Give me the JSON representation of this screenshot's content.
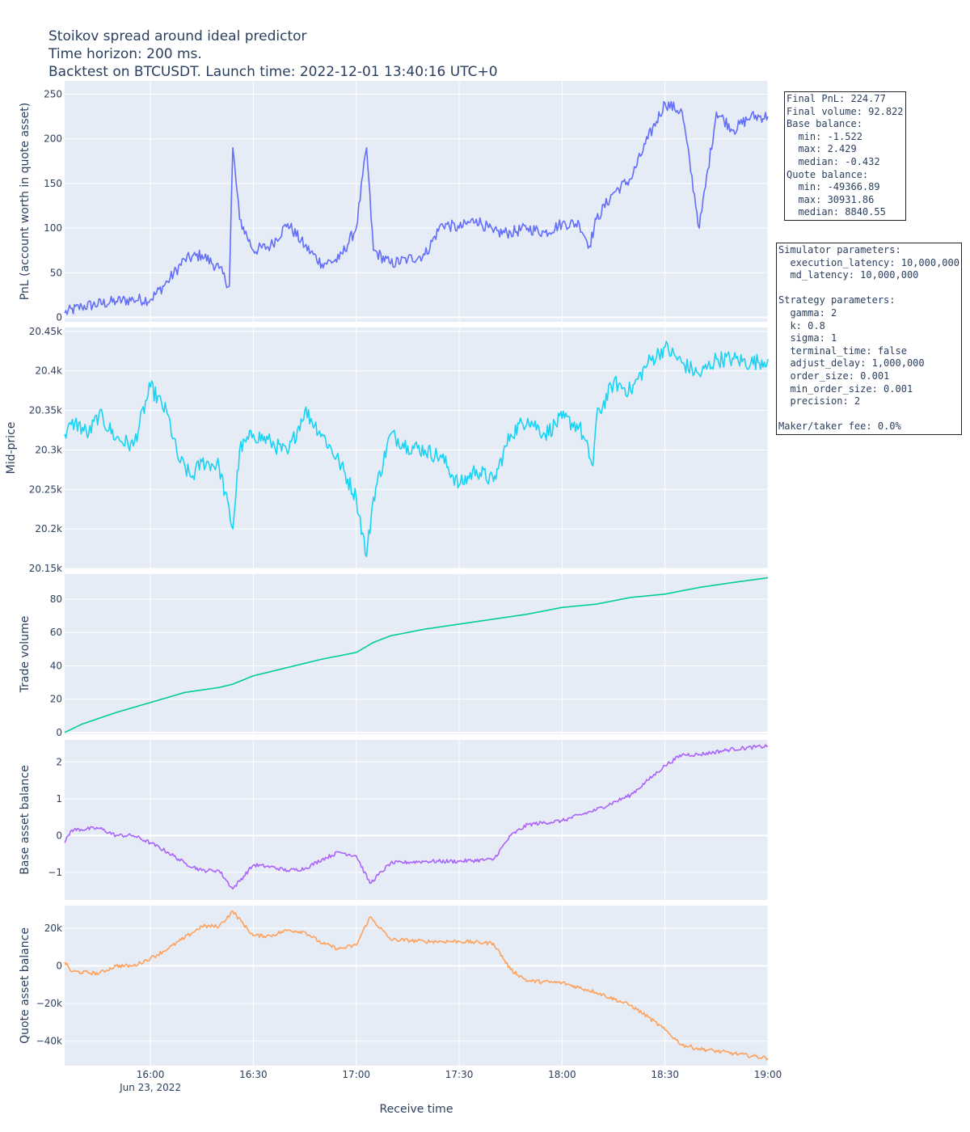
{
  "title": {
    "line1": "Stoikov spread around ideal predictor",
    "line2": "Time horizon: 200 ms.",
    "line3": "Backtest on BTCUSDT. Launch time: 2022-12-01 13:40:16 UTC+0"
  },
  "summary_box": {
    "lines": [
      "Final PnL: 224.77",
      "Final volume: 92.822",
      "Base balance:",
      "  min: -1.522",
      "  max: 2.429",
      "  median: -0.432",
      "Quote balance:",
      "  min: -49366.89",
      "  max: 30931.86",
      "  median: 8840.55"
    ]
  },
  "params_box": {
    "lines": [
      "Simulator parameters:",
      "  execution_latency: 10,000,000",
      "  md_latency: 10,000,000",
      "",
      "Strategy parameters:",
      "  gamma: 2",
      "  k: 0.8",
      "  sigma: 1",
      "  terminal_time: false",
      "  adjust_delay: 1,000,000",
      "  order_size: 0.001",
      "  min_order_size: 0.001",
      "  precision: 2",
      "",
      "Maker/taker fee: 0.0%"
    ]
  },
  "colors": {
    "pnl": "#636efa",
    "mid": "#19d3f3",
    "volume": "#00cc96",
    "base": "#ab63fa",
    "quote": "#ffa15a",
    "plot_bg": "#e5ecf6",
    "grid": "#ffffff"
  },
  "chart_data": [
    {
      "type": "line",
      "ylabel": "PnL (account worth in quote asset)",
      "ylim": [
        -5,
        265
      ],
      "yticks": [
        0,
        50,
        100,
        150,
        200,
        250
      ],
      "ytick_labels": [
        "0",
        "50",
        "100",
        "150",
        "200",
        "250"
      ],
      "x": [
        "15:35",
        "15:40",
        "15:50",
        "15:55",
        "16:00",
        "16:05",
        "16:10",
        "16:15",
        "16:20",
        "16:23",
        "16:24",
        "16:26",
        "16:30",
        "16:35",
        "16:40",
        "16:45",
        "16:50",
        "16:55",
        "17:00",
        "17:03",
        "17:05",
        "17:10",
        "17:15",
        "17:20",
        "17:25",
        "17:30",
        "17:35",
        "17:40",
        "17:45",
        "17:50",
        "17:55",
        "18:00",
        "18:05",
        "18:08",
        "18:10",
        "18:15",
        "18:20",
        "18:25",
        "18:30",
        "18:35",
        "18:40",
        "18:45",
        "18:50",
        "18:55",
        "19:00"
      ],
      "series": [
        {
          "values": [
            5,
            12,
            18,
            20,
            20,
            40,
            65,
            70,
            55,
            35,
            190,
            110,
            75,
            80,
            105,
            80,
            60,
            65,
            100,
            190,
            75,
            60,
            65,
            70,
            105,
            100,
            110,
            95,
            95,
            100,
            95,
            105,
            105,
            80,
            110,
            140,
            155,
            200,
            240,
            230,
            100,
            230,
            210,
            225,
            225
          ]
        }
      ]
    },
    {
      "type": "line",
      "ylabel": "Mid-price",
      "ylim": [
        20150,
        20455
      ],
      "yticks": [
        20150,
        20200,
        20250,
        20300,
        20350,
        20400,
        20450
      ],
      "ytick_labels": [
        "20.15k",
        "20.2k",
        "20.25k",
        "20.3k",
        "20.35k",
        "20.4k",
        "20.45k"
      ],
      "x": [
        "15:35",
        "15:38",
        "15:42",
        "15:45",
        "15:50",
        "15:55",
        "16:00",
        "16:05",
        "16:08",
        "16:12",
        "16:15",
        "16:20",
        "16:24",
        "16:26",
        "16:30",
        "16:35",
        "16:40",
        "16:45",
        "16:50",
        "16:55",
        "17:00",
        "17:03",
        "17:05",
        "17:10",
        "17:15",
        "17:20",
        "17:25",
        "17:30",
        "17:35",
        "17:40",
        "17:45",
        "17:50",
        "17:55",
        "18:00",
        "18:05",
        "18:09",
        "18:10",
        "18:15",
        "18:20",
        "18:25",
        "18:30",
        "18:35",
        "18:40",
        "18:45",
        "18:50",
        "18:55",
        "19:00"
      ],
      "series": [
        {
          "values": [
            20320,
            20335,
            20320,
            20345,
            20315,
            20305,
            20380,
            20345,
            20290,
            20265,
            20285,
            20280,
            20200,
            20300,
            20320,
            20310,
            20295,
            20350,
            20320,
            20285,
            20240,
            20165,
            20240,
            20320,
            20305,
            20300,
            20290,
            20255,
            20275,
            20260,
            20320,
            20340,
            20320,
            20340,
            20330,
            20280,
            20340,
            20385,
            20375,
            20410,
            20430,
            20410,
            20395,
            20415,
            20415,
            20410,
            20415
          ]
        }
      ]
    },
    {
      "type": "line",
      "ylabel": "Trade volume",
      "ylim": [
        -1,
        95
      ],
      "yticks": [
        0,
        20,
        40,
        60,
        80
      ],
      "ytick_labels": [
        "0",
        "20",
        "40",
        "60",
        "80"
      ],
      "x": [
        "15:35",
        "15:40",
        "15:50",
        "16:00",
        "16:10",
        "16:20",
        "16:24",
        "16:30",
        "16:40",
        "16:50",
        "17:00",
        "17:05",
        "17:10",
        "17:20",
        "17:30",
        "17:40",
        "17:50",
        "18:00",
        "18:10",
        "18:20",
        "18:30",
        "18:40",
        "18:50",
        "19:00"
      ],
      "series": [
        {
          "values": [
            0,
            5,
            12,
            18,
            24,
            27,
            29,
            34,
            39,
            44,
            48,
            54,
            58,
            62,
            65,
            68,
            71,
            75,
            77,
            81,
            83,
            87,
            90,
            92.8
          ]
        }
      ]
    },
    {
      "type": "line",
      "ylabel": "Base asset balance",
      "ylim": [
        -1.75,
        2.6
      ],
      "yticks": [
        -1,
        0,
        1,
        2
      ],
      "ytick_labels": [
        "−1",
        "0",
        "1",
        "2"
      ],
      "x": [
        "15:35",
        "15:37",
        "15:45",
        "15:50",
        "15:55",
        "16:00",
        "16:05",
        "16:10",
        "16:15",
        "16:20",
        "16:24",
        "16:30",
        "16:35",
        "16:40",
        "16:45",
        "16:50",
        "16:55",
        "17:00",
        "17:04",
        "17:10",
        "17:20",
        "17:30",
        "17:40",
        "17:45",
        "17:50",
        "18:00",
        "18:10",
        "18:20",
        "18:25",
        "18:30",
        "18:35",
        "18:40",
        "18:50",
        "19:00"
      ],
      "series": [
        {
          "values": [
            -0.2,
            0.15,
            0.2,
            0.0,
            0.0,
            -0.2,
            -0.45,
            -0.75,
            -0.95,
            -0.95,
            -1.45,
            -0.8,
            -0.85,
            -0.95,
            -0.9,
            -0.65,
            -0.45,
            -0.55,
            -1.3,
            -0.75,
            -0.7,
            -0.7,
            -0.65,
            0.0,
            0.3,
            0.4,
            0.7,
            1.1,
            1.5,
            1.9,
            2.2,
            2.2,
            2.35,
            2.43
          ]
        }
      ]
    },
    {
      "type": "line",
      "ylabel": "Quote asset balance",
      "ylim": [
        -53000,
        32000
      ],
      "yticks": [
        -40000,
        -20000,
        0,
        20000
      ],
      "ytick_labels": [
        "−40k",
        "−20k",
        "0",
        "20k"
      ],
      "x": [
        "15:35",
        "15:37",
        "15:45",
        "15:50",
        "15:55",
        "16:00",
        "16:05",
        "16:10",
        "16:15",
        "16:20",
        "16:24",
        "16:30",
        "16:35",
        "16:40",
        "16:45",
        "16:50",
        "16:55",
        "17:00",
        "17:04",
        "17:10",
        "17:20",
        "17:30",
        "17:40",
        "17:45",
        "17:50",
        "18:00",
        "18:10",
        "18:20",
        "18:25",
        "18:30",
        "18:35",
        "18:40",
        "18:50",
        "19:00"
      ],
      "series": [
        {
          "values": [
            2000,
            -3000,
            -4000,
            0,
            0,
            4000,
            9000,
            15000,
            21000,
            21000,
            29000,
            16000,
            16000,
            19000,
            18000,
            12000,
            9000,
            11000,
            26000,
            14000,
            13000,
            13000,
            12000,
            -2000,
            -8000,
            -9000,
            -14000,
            -21000,
            -27000,
            -34000,
            -42000,
            -44000,
            -46500,
            -49000
          ]
        }
      ]
    }
  ],
  "x_axis": {
    "title": "Receive time",
    "start": "15:35",
    "end": "19:00",
    "ticks": [
      "16:00",
      "16:30",
      "17:00",
      "17:30",
      "18:00",
      "18:30",
      "19:00"
    ],
    "date_label": "Jun 23, 2022"
  }
}
